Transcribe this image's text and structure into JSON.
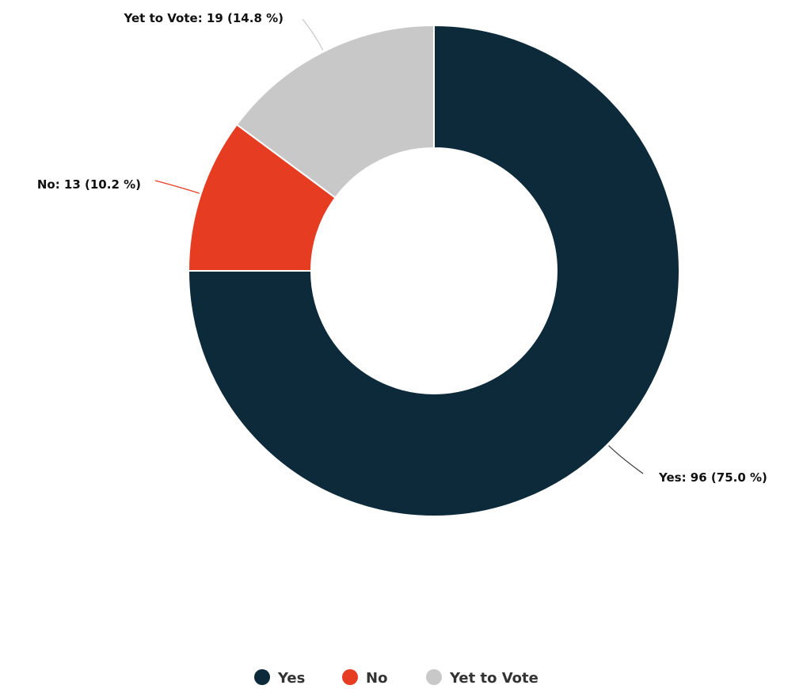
{
  "chart_data": {
    "type": "pie",
    "style": "donut",
    "title": "",
    "categories": [
      "Yes",
      "No",
      "Yet to Vote"
    ],
    "values": [
      96,
      13,
      19
    ],
    "percent_labels": [
      "75.0 %",
      "10.2 %",
      "14.8 %"
    ],
    "slice_labels": [
      "Yes: 96 (75.0 %)",
      "No: 13 (10.2 %)",
      "Yet to Vote: 19 (14.8 %)"
    ],
    "colors": [
      "#0c2a3a",
      "#e63c22",
      "#c8c8c8"
    ],
    "legend": {
      "placement": "bottom-center",
      "entries": [
        "Yes",
        "No",
        "Yet to Vote"
      ]
    }
  }
}
